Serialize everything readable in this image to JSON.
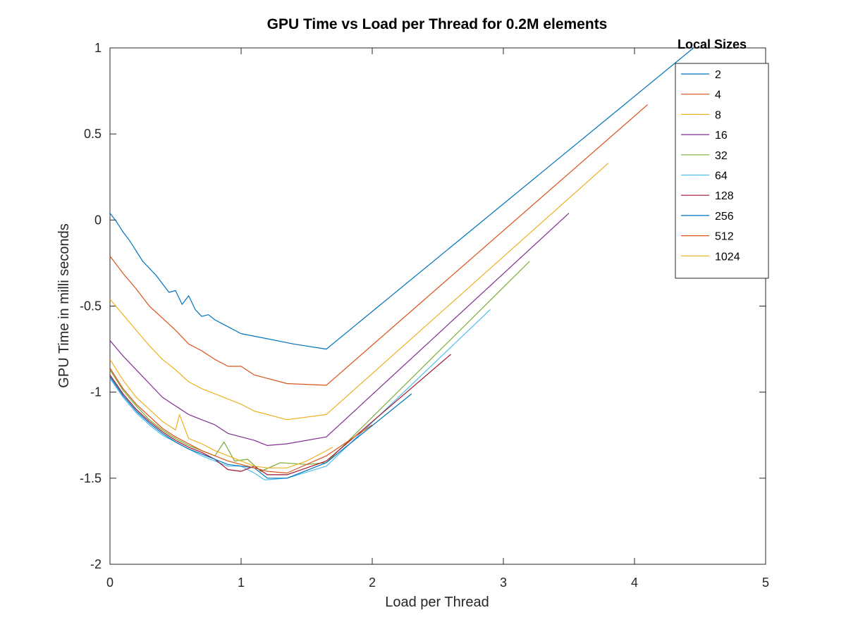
{
  "chart_data": {
    "type": "line",
    "title": "GPU Time vs Load per Thread for 0.2M elements",
    "xlabel": "Load per Thread",
    "ylabel": "GPU Time in milli seconds",
    "xlim": [
      0,
      5
    ],
    "ylim": [
      -2,
      1
    ],
    "xticks": [
      "0",
      "1",
      "2",
      "3",
      "4",
      "5"
    ],
    "yticks": [
      "1",
      "0.5",
      "0",
      "-0.5",
      "-1",
      "-1.5",
      "-2"
    ],
    "grid": false,
    "legend_title": "Local Sizes",
    "legend_position": "top-right",
    "series": [
      {
        "name": "2",
        "color": "#0072BD",
        "points": [
          [
            0.0,
            0.04
          ],
          [
            0.05,
            -0.01
          ],
          [
            0.1,
            -0.07
          ],
          [
            0.15,
            -0.12
          ],
          [
            0.2,
            -0.18
          ],
          [
            0.25,
            -0.24
          ],
          [
            0.3,
            -0.28
          ],
          [
            0.35,
            -0.32
          ],
          [
            0.4,
            -0.37
          ],
          [
            0.45,
            -0.42
          ],
          [
            0.5,
            -0.41
          ],
          [
            0.55,
            -0.49
          ],
          [
            0.6,
            -0.44
          ],
          [
            0.65,
            -0.52
          ],
          [
            0.7,
            -0.56
          ],
          [
            0.75,
            -0.55
          ],
          [
            0.8,
            -0.58
          ],
          [
            0.9,
            -0.62
          ],
          [
            1.0,
            -0.66
          ],
          [
            1.2,
            -0.69
          ],
          [
            1.4,
            -0.72
          ],
          [
            1.65,
            -0.75
          ],
          [
            4.45,
            1.0
          ]
        ]
      },
      {
        "name": "4",
        "color": "#D95319",
        "points": [
          [
            0.0,
            -0.21
          ],
          [
            0.1,
            -0.31
          ],
          [
            0.2,
            -0.4
          ],
          [
            0.3,
            -0.5
          ],
          [
            0.4,
            -0.57
          ],
          [
            0.5,
            -0.64
          ],
          [
            0.6,
            -0.72
          ],
          [
            0.7,
            -0.76
          ],
          [
            0.8,
            -0.81
          ],
          [
            0.9,
            -0.85
          ],
          [
            1.0,
            -0.85
          ],
          [
            1.1,
            -0.9
          ],
          [
            1.35,
            -0.95
          ],
          [
            1.65,
            -0.96
          ],
          [
            4.1,
            0.67
          ]
        ]
      },
      {
        "name": "8",
        "color": "#EDB120",
        "points": [
          [
            0.0,
            -0.46
          ],
          [
            0.1,
            -0.55
          ],
          [
            0.2,
            -0.64
          ],
          [
            0.3,
            -0.73
          ],
          [
            0.4,
            -0.81
          ],
          [
            0.5,
            -0.87
          ],
          [
            0.6,
            -0.94
          ],
          [
            0.7,
            -0.98
          ],
          [
            0.8,
            -1.01
          ],
          [
            0.9,
            -1.04
          ],
          [
            1.0,
            -1.07
          ],
          [
            1.1,
            -1.11
          ],
          [
            1.35,
            -1.16
          ],
          [
            1.65,
            -1.13
          ],
          [
            3.8,
            0.33
          ]
        ]
      },
      {
        "name": "16",
        "color": "#7E2F8E",
        "points": [
          [
            0.0,
            -0.7
          ],
          [
            0.1,
            -0.79
          ],
          [
            0.2,
            -0.87
          ],
          [
            0.3,
            -0.95
          ],
          [
            0.4,
            -1.03
          ],
          [
            0.5,
            -1.08
          ],
          [
            0.6,
            -1.13
          ],
          [
            0.7,
            -1.16
          ],
          [
            0.8,
            -1.19
          ],
          [
            0.9,
            -1.24
          ],
          [
            1.0,
            -1.26
          ],
          [
            1.1,
            -1.28
          ],
          [
            1.2,
            -1.31
          ],
          [
            1.35,
            -1.3
          ],
          [
            1.65,
            -1.26
          ],
          [
            3.5,
            0.04
          ]
        ]
      },
      {
        "name": "32",
        "color": "#77AC30",
        "points": [
          [
            0.0,
            -0.87
          ],
          [
            0.1,
            -0.99
          ],
          [
            0.2,
            -1.08
          ],
          [
            0.3,
            -1.16
          ],
          [
            0.4,
            -1.22
          ],
          [
            0.5,
            -1.27
          ],
          [
            0.6,
            -1.31
          ],
          [
            0.7,
            -1.34
          ],
          [
            0.8,
            -1.37
          ],
          [
            0.87,
            -1.29
          ],
          [
            0.95,
            -1.4
          ],
          [
            1.05,
            -1.39
          ],
          [
            1.15,
            -1.46
          ],
          [
            1.3,
            -1.41
          ],
          [
            1.5,
            -1.42
          ],
          [
            1.65,
            -1.41
          ],
          [
            3.2,
            -0.24
          ]
        ]
      },
      {
        "name": "64",
        "color": "#4DBEEE",
        "points": [
          [
            0.0,
            -0.92
          ],
          [
            0.1,
            -1.03
          ],
          [
            0.2,
            -1.12
          ],
          [
            0.3,
            -1.19
          ],
          [
            0.4,
            -1.25
          ],
          [
            0.5,
            -1.29
          ],
          [
            0.6,
            -1.33
          ],
          [
            0.7,
            -1.37
          ],
          [
            0.8,
            -1.4
          ],
          [
            0.9,
            -1.43
          ],
          [
            1.0,
            -1.43
          ],
          [
            1.1,
            -1.47
          ],
          [
            1.18,
            -1.51
          ],
          [
            1.35,
            -1.5
          ],
          [
            1.65,
            -1.43
          ],
          [
            2.9,
            -0.52
          ]
        ]
      },
      {
        "name": "128",
        "color": "#A2142F",
        "points": [
          [
            0.0,
            -0.9
          ],
          [
            0.1,
            -1.01
          ],
          [
            0.2,
            -1.1
          ],
          [
            0.3,
            -1.17
          ],
          [
            0.4,
            -1.23
          ],
          [
            0.5,
            -1.28
          ],
          [
            0.6,
            -1.32
          ],
          [
            0.7,
            -1.35
          ],
          [
            0.8,
            -1.39
          ],
          [
            0.9,
            -1.45
          ],
          [
            1.0,
            -1.46
          ],
          [
            1.1,
            -1.43
          ],
          [
            1.2,
            -1.48
          ],
          [
            1.35,
            -1.48
          ],
          [
            1.65,
            -1.4
          ],
          [
            2.6,
            -0.78
          ]
        ]
      },
      {
        "name": "256",
        "color": "#0072BD",
        "points": [
          [
            0.0,
            -0.91
          ],
          [
            0.1,
            -1.02
          ],
          [
            0.2,
            -1.11
          ],
          [
            0.3,
            -1.18
          ],
          [
            0.4,
            -1.24
          ],
          [
            0.5,
            -1.29
          ],
          [
            0.6,
            -1.33
          ],
          [
            0.7,
            -1.36
          ],
          [
            0.8,
            -1.39
          ],
          [
            0.9,
            -1.42
          ],
          [
            1.0,
            -1.43
          ],
          [
            1.1,
            -1.44
          ],
          [
            1.2,
            -1.5
          ],
          [
            1.35,
            -1.5
          ],
          [
            1.65,
            -1.41
          ],
          [
            2.3,
            -1.01
          ]
        ]
      },
      {
        "name": "512",
        "color": "#D95319",
        "points": [
          [
            0.0,
            -0.86
          ],
          [
            0.1,
            -0.98
          ],
          [
            0.2,
            -1.07
          ],
          [
            0.3,
            -1.14
          ],
          [
            0.4,
            -1.21
          ],
          [
            0.5,
            -1.26
          ],
          [
            0.6,
            -1.3
          ],
          [
            0.7,
            -1.34
          ],
          [
            0.8,
            -1.37
          ],
          [
            0.9,
            -1.4
          ],
          [
            1.0,
            -1.42
          ],
          [
            1.1,
            -1.44
          ],
          [
            1.2,
            -1.46
          ],
          [
            1.35,
            -1.47
          ],
          [
            1.65,
            -1.37
          ],
          [
            2.0,
            -1.19
          ]
        ]
      },
      {
        "name": "1024",
        "color": "#EDB120",
        "points": [
          [
            0.0,
            -0.81
          ],
          [
            0.1,
            -0.93
          ],
          [
            0.2,
            -1.03
          ],
          [
            0.3,
            -1.1
          ],
          [
            0.4,
            -1.17
          ],
          [
            0.5,
            -1.22
          ],
          [
            0.53,
            -1.13
          ],
          [
            0.6,
            -1.27
          ],
          [
            0.7,
            -1.3
          ],
          [
            0.8,
            -1.34
          ],
          [
            0.9,
            -1.37
          ],
          [
            1.0,
            -1.4
          ],
          [
            1.1,
            -1.43
          ],
          [
            1.2,
            -1.44
          ],
          [
            1.35,
            -1.44
          ],
          [
            1.5,
            -1.4
          ],
          [
            1.7,
            -1.32
          ]
        ]
      }
    ]
  }
}
